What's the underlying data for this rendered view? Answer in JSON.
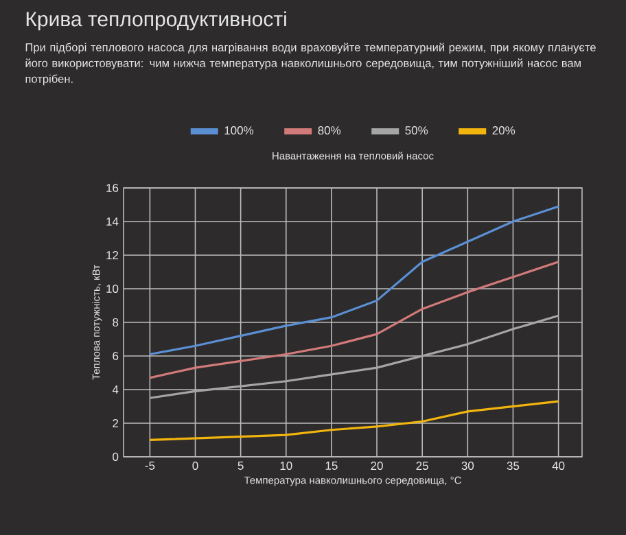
{
  "chart_data": {
    "type": "line",
    "title": "Крива теплопродуктивності",
    "subtitle": "При підборі теплового насоса для нагрівання води враховуйте температурний режим, при якому плануєте його використовувати: чим нижча температура навколишнього середовища, тим потужніший насос вам потрібен.",
    "xlabel": "Температура навколишнього середовища, °C",
    "ylabel": "Теплова потужність, кВт",
    "legend_title": "Навантаження на тепловий насос",
    "legend": "top",
    "grid": true,
    "marker": "none",
    "line_style": "solid",
    "categories": [
      "-5",
      "0",
      "5",
      "10",
      "15",
      "20",
      "25",
      "30",
      "35",
      "40"
    ],
    "ylim": [
      0,
      16
    ],
    "yticks": [
      0,
      2,
      4,
      6,
      8,
      10,
      12,
      14,
      16
    ],
    "series": [
      {
        "name": "100%",
        "color": "#5b8fd4",
        "values": [
          6.1,
          6.6,
          7.2,
          7.8,
          8.3,
          9.3,
          11.6,
          12.8,
          14.0,
          14.9
        ]
      },
      {
        "name": "80%",
        "color": "#d27a7a",
        "values": [
          4.7,
          5.3,
          5.7,
          6.1,
          6.6,
          7.3,
          8.8,
          9.8,
          10.7,
          11.6
        ]
      },
      {
        "name": "50%",
        "color": "#a5a5a5",
        "values": [
          3.5,
          3.9,
          4.2,
          4.5,
          4.9,
          5.3,
          6.0,
          6.7,
          7.6,
          8.4
        ]
      },
      {
        "name": "20%",
        "color": "#f2b50e",
        "values": [
          1.0,
          1.1,
          1.2,
          1.3,
          1.6,
          1.8,
          2.1,
          2.7,
          3.0,
          3.3
        ]
      }
    ]
  }
}
